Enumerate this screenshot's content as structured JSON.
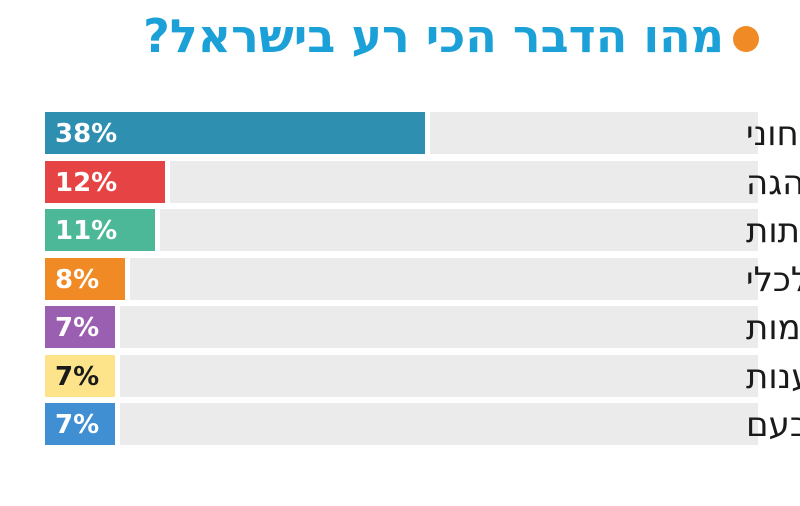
{
  "header": {
    "title": "מהו הדבר הכי רע בישראל?",
    "bullet_color": "#f08a24",
    "title_color": "#1ba0d7"
  },
  "chart_data": {
    "type": "bar",
    "orientation": "horizontal",
    "title": "מהו הדבר הכי רע בישראל?",
    "unit": "%",
    "categories": [
      "המצב הביטחוני",
      "ההנהגה",
      "השחיתות",
      "המצב הכלכלי",
      "עצבנות ואלימות",
      "גזענות",
      "חוסר אחדות בעם"
    ],
    "values": [
      38,
      12,
      11,
      8,
      7,
      7,
      7
    ],
    "value_labels": [
      "38%",
      "12%",
      "11%",
      "8%",
      "7%",
      "7%",
      "7%"
    ],
    "colors": [
      "#2e8fb0",
      "#e64444",
      "#4cb897",
      "#f08a24",
      "#9a5fb0",
      "#fde38a",
      "#3f8fd2"
    ],
    "value_label_colors": [
      "#ffffff",
      "#ffffff",
      "#ffffff",
      "#ffffff",
      "#ffffff",
      "#1a1a1a",
      "#ffffff"
    ],
    "track_color": "#ebebeb",
    "xlim": [
      0,
      100
    ],
    "grid": false,
    "legend": "none"
  }
}
